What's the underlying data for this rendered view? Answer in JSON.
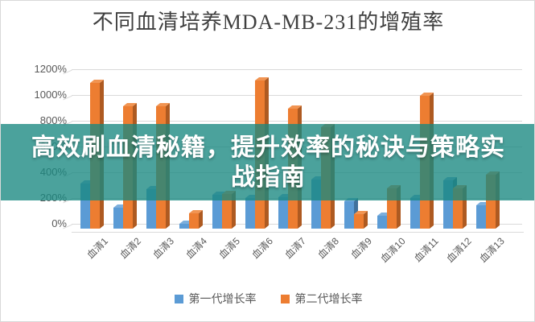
{
  "banner": {
    "line1": "高效刷血清秘籍，提升效率的秘诀与策略实",
    "line2": "战指南",
    "overlay_color": "#188880",
    "overlay_alpha": 0.78,
    "text_color": "#ffffff"
  },
  "chart_data": {
    "type": "bar",
    "style_3d": true,
    "title": "不同血清培养MDA-MB-231的增殖率",
    "categories": [
      "血清1",
      "血清2",
      "血清3",
      "血清4",
      "血清5",
      "血清6",
      "血清7",
      "血清8",
      "血清9",
      "血清10",
      "血清11",
      "血清12",
      "血清13"
    ],
    "series": [
      {
        "name": "第一代增长率",
        "color": "#5B9BD5",
        "side_color": "#41719C",
        "top_color": "#7CAFDD",
        "values": [
          350,
          165,
          305,
          40,
          260,
          240,
          245,
          380,
          210,
          100,
          240,
          375,
          180
        ]
      },
      {
        "name": "第二代增长率",
        "color": "#ED7D31",
        "side_color": "#AE5A21",
        "top_color": "#F19452",
        "values": [
          1130,
          950,
          950,
          120,
          270,
          1150,
          930,
          790,
          110,
          310,
          1030,
          310,
          420
        ]
      }
    ],
    "ylim": [
      0,
      1200
    ],
    "yticks": [
      {
        "value": 0,
        "label": "0%"
      },
      {
        "value": 200,
        "label": "200%"
      },
      {
        "value": 400,
        "label": "400%"
      },
      {
        "value": 600,
        "label": "600%"
      },
      {
        "value": 800,
        "label": "800%"
      },
      {
        "value": 1000,
        "label": "1000%"
      },
      {
        "value": 1200,
        "label": "1200%"
      }
    ],
    "grid": true,
    "legend_position": "bottom",
    "axis_text_color": "#595959",
    "grid_color": "#d9d9d9",
    "title_color": "#3f3f3f"
  }
}
